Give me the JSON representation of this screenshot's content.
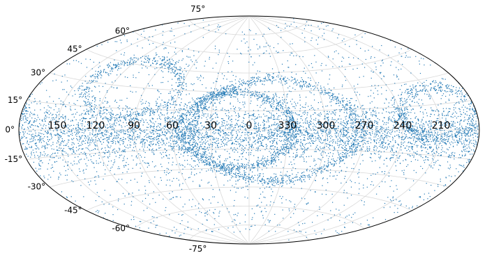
{
  "chart_data": {
    "type": "scatter",
    "projection": "aitoff-style ellipse (sky map)",
    "title": "",
    "xlabel": "",
    "ylabel": "",
    "grid": true,
    "xlim": [
      -180,
      180
    ],
    "ylim": [
      -90,
      90
    ],
    "lon_tick_labels": [
      {
        "label": "150",
        "lon": 150
      },
      {
        "label": "120",
        "lon": 120
      },
      {
        "label": "90",
        "lon": 90
      },
      {
        "label": "60",
        "lon": 60
      },
      {
        "label": "30",
        "lon": 30
      },
      {
        "label": "0",
        "lon": 0
      },
      {
        "label": "330",
        "lon": -30
      },
      {
        "label": "300",
        "lon": -60
      },
      {
        "label": "270",
        "lon": -90
      },
      {
        "label": "240",
        "lon": -120
      },
      {
        "label": "210",
        "lon": -150
      }
    ],
    "lat_tick_labels": [
      {
        "label": "75°",
        "lat": 75
      },
      {
        "label": "60°",
        "lat": 60
      },
      {
        "label": "45°",
        "lat": 45
      },
      {
        "label": "30°",
        "lat": 30
      },
      {
        "label": "15°",
        "lat": 15
      },
      {
        "label": "0°",
        "lat": 0
      },
      {
        "label": "-15°",
        "lat": -15
      },
      {
        "label": "-30°",
        "lat": -30
      },
      {
        "label": "-45°",
        "lat": -45
      },
      {
        "label": "-60°",
        "lat": -60
      },
      {
        "label": "-75°",
        "lat": -75
      }
    ],
    "series": [
      {
        "color": "#1f77b4",
        "marker": "point",
        "description_of_structures": [
          {
            "kind": "band",
            "lon": [
              -180,
              180
            ],
            "lat_center": -3,
            "lat_spread": 10,
            "weight": 0.42
          },
          {
            "kind": "diffuse",
            "lon": [
              -180,
              180
            ],
            "lat": [
              -80,
              80
            ],
            "weight": 0.22
          },
          {
            "kind": "arc",
            "lon_center": 10,
            "lat_center": 0,
            "lon_radius": 45,
            "lat_radius": 30,
            "weight": 0.12
          },
          {
            "kind": "arc",
            "lon_center": -20,
            "lat_center": 0,
            "lon_radius": 65,
            "lat_radius": 40,
            "weight": 0.12
          },
          {
            "kind": "arc",
            "lon_center": 100,
            "lat_center": 30,
            "lon_radius": 40,
            "lat_radius": 20,
            "weight": 0.06
          },
          {
            "kind": "arc",
            "lon_center": -150,
            "lat_center": 10,
            "lon_radius": 30,
            "lat_radius": 15,
            "weight": 0.06
          }
        ],
        "points": [
          [
            0,
            -2
          ],
          [
            5,
            3
          ],
          [
            10,
            -6
          ],
          [
            15,
            1
          ],
          [
            20,
            -3
          ],
          [
            25,
            4
          ],
          [
            30,
            -5
          ],
          [
            35,
            2
          ],
          [
            40,
            -1
          ],
          [
            45,
            -7
          ],
          [
            50,
            3
          ],
          [
            55,
            -4
          ],
          [
            60,
            0
          ],
          [
            65,
            -6
          ],
          [
            70,
            2
          ],
          [
            75,
            -3
          ],
          [
            80,
            -8
          ],
          [
            85,
            1
          ],
          [
            90,
            -2
          ],
          [
            95,
            -5
          ],
          [
            100,
            3
          ],
          [
            105,
            -1
          ],
          [
            110,
            -6
          ],
          [
            115,
            2
          ],
          [
            120,
            -3
          ],
          [
            125,
            -7
          ],
          [
            130,
            1
          ],
          [
            135,
            -4
          ],
          [
            140,
            -9
          ],
          [
            145,
            -2
          ],
          [
            150,
            0
          ],
          [
            155,
            -5
          ],
          [
            160,
            -10
          ],
          [
            165,
            -3
          ],
          [
            170,
            -6
          ],
          [
            175,
            -1
          ],
          [
            -5,
            1
          ],
          [
            -10,
            -4
          ],
          [
            -15,
            2
          ],
          [
            -20,
            -3
          ],
          [
            -25,
            5
          ],
          [
            -30,
            -2
          ],
          [
            -35,
            3
          ],
          [
            -40,
            -5
          ],
          [
            -45,
            1
          ],
          [
            -50,
            -4
          ],
          [
            -55,
            4
          ],
          [
            -60,
            -1
          ],
          [
            -65,
            6
          ],
          [
            -70,
            -3
          ],
          [
            -75,
            2
          ],
          [
            -80,
            7
          ],
          [
            -85,
            -2
          ],
          [
            -90,
            4
          ],
          [
            -95,
            8
          ],
          [
            -100,
            1
          ],
          [
            -105,
            6
          ],
          [
            -110,
            -2
          ],
          [
            -115,
            4
          ],
          [
            -120,
            9
          ],
          [
            -125,
            2
          ],
          [
            -130,
            -3
          ],
          [
            -135,
            5
          ],
          [
            -140,
            -6
          ],
          [
            -145,
            3
          ],
          [
            -150,
            -8
          ],
          [
            -155,
            -4
          ],
          [
            -160,
            2
          ],
          [
            -165,
            -7
          ],
          [
            -170,
            -2
          ],
          [
            -175,
            4
          ],
          [
            30,
            40
          ],
          [
            60,
            35
          ],
          [
            90,
            40
          ],
          [
            120,
            25
          ],
          [
            150,
            15
          ],
          [
            -30,
            45
          ],
          [
            -60,
            30
          ],
          [
            -90,
            25
          ],
          [
            -120,
            30
          ],
          [
            -150,
            20
          ],
          [
            20,
            -40
          ],
          [
            50,
            -30
          ],
          [
            80,
            -35
          ],
          [
            110,
            -25
          ],
          [
            140,
            -20
          ],
          [
            -20,
            -45
          ],
          [
            -50,
            -35
          ],
          [
            -80,
            -30
          ],
          [
            -110,
            -40
          ],
          [
            -140,
            -25
          ],
          [
            10,
            60
          ],
          [
            -10,
            -60
          ],
          [
            70,
            55
          ],
          [
            -70,
            -55
          ],
          [
            130,
            50
          ],
          [
            -130,
            -50
          ]
        ]
      }
    ]
  }
}
